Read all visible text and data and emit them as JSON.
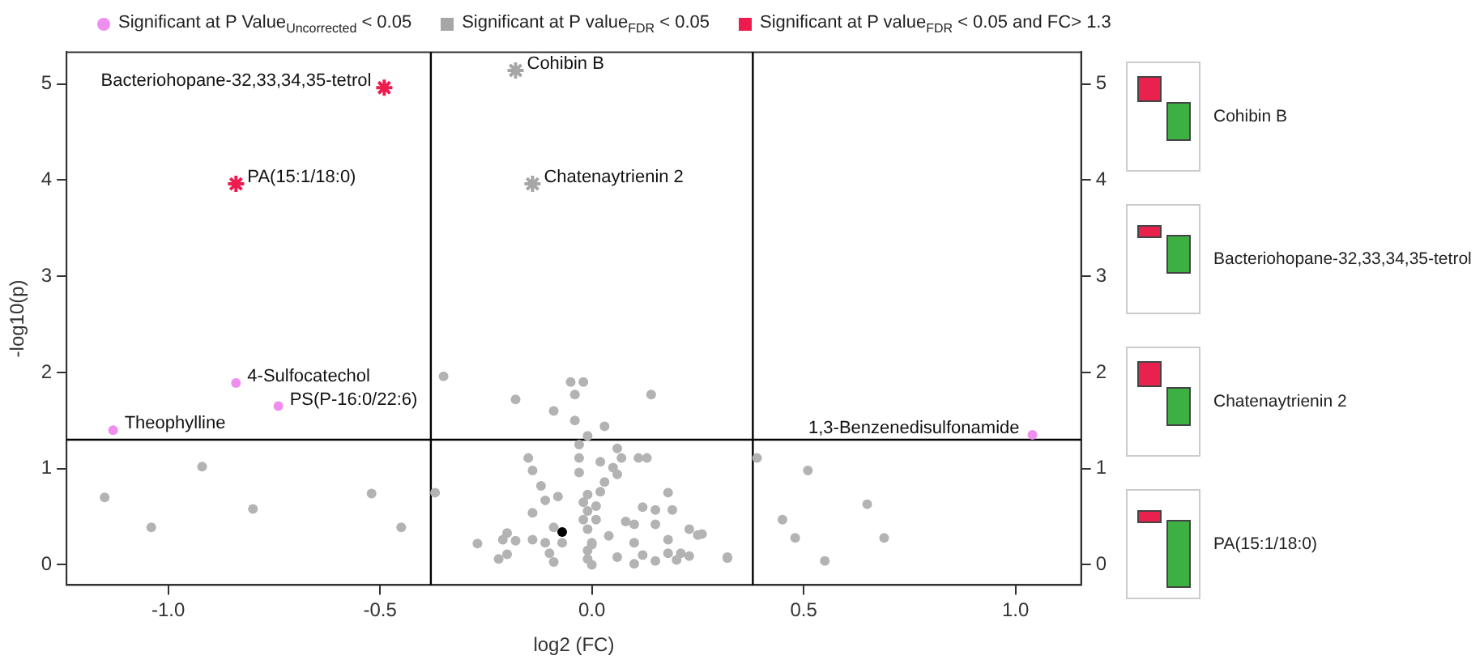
{
  "chart_data": {
    "type": "scatter",
    "xlabel": "log2 (FC)",
    "ylabel": "-log10(p)",
    "xlim": [
      -1.24,
      1.155
    ],
    "ylim": [
      -0.21,
      5.33
    ],
    "y2lim": [
      -0.21,
      5.33
    ],
    "xticks": [
      {
        "value": -1,
        "label": "-1.0"
      },
      {
        "value": -0.5,
        "label": "-0.5"
      },
      {
        "value": 0,
        "label": "0.0"
      },
      {
        "value": 0.5,
        "label": "0.5"
      },
      {
        "value": 1,
        "label": "1.0"
      }
    ],
    "yticks": [
      0,
      1,
      2,
      3,
      4,
      5
    ],
    "y2ticks": [
      0,
      1,
      2,
      3,
      4,
      5
    ],
    "grid": false,
    "legend": "top",
    "series": [
      {
        "name": "Significant at P Value$_{Uncorrected}$ < 0.05",
        "color": "#f08ef0",
        "marker": "circle",
        "x": [
          -0.84,
          -0.74,
          -1.13,
          1.04
        ],
        "values": [
          1.89,
          1.65,
          1.4,
          1.35
        ]
      },
      {
        "name": "Significant at P value$_{FDR}$ < 0.05",
        "color": "#a6a6a6",
        "marker": "cross",
        "x": [
          -0.18,
          -0.14
        ],
        "values": [
          5.14,
          3.96
        ]
      },
      {
        "name": "Significant at P value$_{FDR}$ < 0.05 and FC> 1.3",
        "color": "#ee1c4e",
        "marker": "cross",
        "x": [
          -0.49,
          -0.84
        ],
        "values": [
          4.96,
          3.96
        ]
      },
      {
        "color": "#b3b3b3",
        "marker": "circle",
        "x": [
          -1.15,
          -1.04,
          -0.92,
          -0.8,
          -0.52,
          -0.45,
          0.39,
          0.51,
          0.65,
          0.45,
          0.48,
          0.69,
          0.55,
          0.32,
          0.26,
          -0.35,
          -0.18,
          -0.05,
          -0.02,
          -0.04,
          -0.09,
          0.14,
          -0.04,
          0.03,
          -0.01,
          -0.03,
          0.06,
          -0.15,
          -0.14,
          -0.37,
          -0.03,
          0.02,
          0.07,
          0.11,
          0.13,
          0.05,
          -0.03,
          0.06,
          -0.12,
          0.03,
          0.02,
          -0.01,
          -0.08,
          0.18,
          -0.11,
          -0.02,
          0.01,
          0.12,
          0.15,
          0.19,
          -0.14,
          -0.01,
          0.01,
          0.08,
          0.1,
          0.15,
          0.23,
          0.25,
          -0.2,
          -0.09,
          -0.01,
          0.04,
          -0.27,
          -0.21,
          -0.18,
          -0.14,
          -0.11,
          -0.07,
          0.0,
          0.1,
          0.18,
          -0.22,
          -0.2,
          -0.1,
          -0.09,
          -0.01,
          0.0,
          0.06,
          0.1,
          0.12,
          0.15,
          0.18,
          0.2,
          0.21,
          0.23,
          0.32,
          -0.02,
          -0.01,
          0.0
        ],
        "values": [
          0.7,
          0.39,
          1.02,
          0.58,
          0.74,
          0.39,
          1.11,
          0.98,
          0.63,
          0.47,
          0.28,
          0.28,
          0.04,
          0.07,
          0.32,
          1.96,
          1.72,
          1.9,
          1.9,
          1.77,
          1.6,
          1.77,
          1.5,
          1.44,
          1.34,
          1.25,
          1.21,
          1.11,
          0.98,
          0.75,
          1.11,
          1.07,
          1.11,
          1.11,
          1.11,
          1.01,
          0.96,
          0.94,
          0.82,
          0.86,
          0.76,
          0.73,
          0.71,
          0.75,
          0.67,
          0.65,
          0.61,
          0.6,
          0.57,
          0.57,
          0.54,
          0.56,
          0.47,
          0.45,
          0.42,
          0.42,
          0.37,
          0.31,
          0.33,
          0.39,
          0.37,
          0.3,
          0.22,
          0.26,
          0.25,
          0.26,
          0.23,
          0.23,
          0.23,
          0.23,
          0.26,
          0.06,
          0.11,
          0.12,
          0.03,
          0.06,
          0.0,
          0.08,
          0.01,
          0.1,
          0.04,
          0.12,
          0.05,
          0.12,
          0.09,
          0.08,
          0.47,
          0.15,
          0.21
        ]
      },
      {
        "color": "#000000",
        "marker": "circle",
        "x": [
          -0.07
        ],
        "values": [
          0.34
        ]
      }
    ],
    "ref_lines": [
      {
        "axis": "x",
        "value": -0.38,
        "color": "#000000"
      },
      {
        "axis": "x",
        "value": 0.38,
        "color": "#000000"
      },
      {
        "axis": "y",
        "value": 1.3,
        "color": "#000000"
      }
    ],
    "annotations": [
      {
        "text": "4-Sulfocatechol",
        "x": -0.84,
        "y": 1.89
      },
      {
        "text": "PS(P-16:0/22:6)",
        "x": -0.74,
        "y": 1.65
      },
      {
        "text": "Theophylline",
        "x": -1.13,
        "y": 1.4
      },
      {
        "text": "1,3-Benzenedisulfonamide",
        "x": 1.04,
        "y": 1.35
      },
      {
        "text": "Cohibin B",
        "x": -0.18,
        "y": 5.14
      },
      {
        "text": "Chatenaytrienin 2",
        "x": -0.14,
        "y": 3.96
      },
      {
        "text": "Bacteriohopane-32,33,34,35-tetrol",
        "x": -0.49,
        "y": 4.96
      },
      {
        "text": "PA(15:1/18:0)",
        "x": -0.84,
        "y": 3.96
      },
      "Cohibin B",
      "Bacteriohopane-32,33,34,35-tetrol",
      "Chatenaytrienin 2",
      "PA(15:1/18:0)"
    ]
  }
}
